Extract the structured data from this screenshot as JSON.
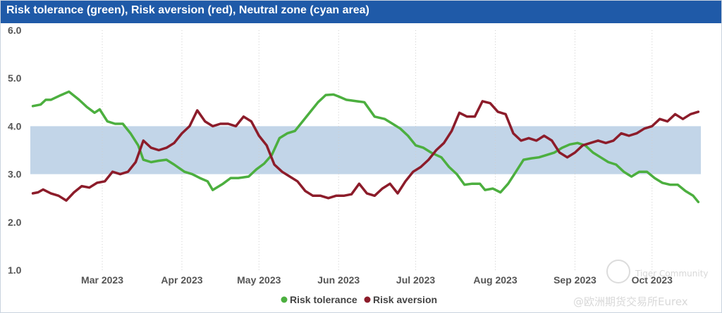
{
  "header": {
    "title": "Risk tolerance (green), Risk aversion (red), Neutral zone (cyan area)"
  },
  "watermark": {
    "community": "Tiger Community",
    "handle": "@欧洲期货交易所Eurex"
  },
  "colors": {
    "header": "#1f5aa8",
    "tolerance": "#4caf3f",
    "aversion": "#8c1c2a",
    "neutral": "#c2d5e8",
    "grid": "#cfcfcf"
  },
  "chart_data": {
    "type": "line",
    "title": "Risk tolerance (green), Risk aversion (red), Neutral zone (cyan area)",
    "x_type": "date",
    "x_range": [
      "2023-02-01",
      "2023-10-20"
    ],
    "ylim": [
      1.0,
      6.0
    ],
    "y_ticks": [
      "1.0",
      "2.0",
      "3.0",
      "4.0",
      "5.0",
      "6.0"
    ],
    "x_ticks": [
      {
        "label": "Mar 2023",
        "date": "2023-03-01"
      },
      {
        "label": "Apr 2023",
        "date": "2023-04-01"
      },
      {
        "label": "May 2023",
        "date": "2023-05-01"
      },
      {
        "label": "Jun 2023",
        "date": "2023-06-01"
      },
      {
        "label": "Jul 2023",
        "date": "2023-07-01"
      },
      {
        "label": "Aug 2023",
        "date": "2023-08-01"
      },
      {
        "label": "Sep 2023",
        "date": "2023-09-01"
      },
      {
        "label": "Oct 2023",
        "date": "2023-10-01"
      }
    ],
    "grid": "vertical dotted",
    "legend": "bottom-center",
    "bands": [
      {
        "name": "Neutral zone",
        "from": 3.0,
        "to": 4.0
      }
    ],
    "series": [
      {
        "name": "Risk tolerance",
        "data": [
          [
            "2023-02-02",
            4.42
          ],
          [
            "2023-02-05",
            4.45
          ],
          [
            "2023-02-07",
            4.55
          ],
          [
            "2023-02-09",
            4.55
          ],
          [
            "2023-02-13",
            4.65
          ],
          [
            "2023-02-16",
            4.72
          ],
          [
            "2023-02-20",
            4.55
          ],
          [
            "2023-02-23",
            4.4
          ],
          [
            "2023-02-26",
            4.28
          ],
          [
            "2023-02-28",
            4.35
          ],
          [
            "2023-03-03",
            4.1
          ],
          [
            "2023-03-06",
            4.05
          ],
          [
            "2023-03-09",
            4.05
          ],
          [
            "2023-03-12",
            3.85
          ],
          [
            "2023-03-15",
            3.6
          ],
          [
            "2023-03-17",
            3.3
          ],
          [
            "2023-03-20",
            3.25
          ],
          [
            "2023-03-23",
            3.28
          ],
          [
            "2023-03-26",
            3.3
          ],
          [
            "2023-03-29",
            3.2
          ],
          [
            "2023-04-02",
            3.05
          ],
          [
            "2023-04-05",
            3.0
          ],
          [
            "2023-04-08",
            2.92
          ],
          [
            "2023-04-11",
            2.85
          ],
          [
            "2023-04-13",
            2.67
          ],
          [
            "2023-04-17",
            2.8
          ],
          [
            "2023-04-20",
            2.92
          ],
          [
            "2023-04-23",
            2.92
          ],
          [
            "2023-04-27",
            2.95
          ],
          [
            "2023-04-30",
            3.1
          ],
          [
            "2023-05-03",
            3.22
          ],
          [
            "2023-05-06",
            3.4
          ],
          [
            "2023-05-09",
            3.75
          ],
          [
            "2023-05-12",
            3.85
          ],
          [
            "2023-05-15",
            3.9
          ],
          [
            "2023-05-18",
            4.1
          ],
          [
            "2023-05-21",
            4.3
          ],
          [
            "2023-05-24",
            4.5
          ],
          [
            "2023-05-27",
            4.65
          ],
          [
            "2023-05-30",
            4.66
          ],
          [
            "2023-06-01",
            4.62
          ],
          [
            "2023-06-04",
            4.55
          ],
          [
            "2023-06-08",
            4.52
          ],
          [
            "2023-06-11",
            4.5
          ],
          [
            "2023-06-15",
            4.2
          ],
          [
            "2023-06-19",
            4.15
          ],
          [
            "2023-06-22",
            4.05
          ],
          [
            "2023-06-25",
            3.95
          ],
          [
            "2023-06-28",
            3.8
          ],
          [
            "2023-07-01",
            3.6
          ],
          [
            "2023-07-04",
            3.55
          ],
          [
            "2023-07-07",
            3.45
          ],
          [
            "2023-07-11",
            3.35
          ],
          [
            "2023-07-14",
            3.15
          ],
          [
            "2023-07-17",
            3.0
          ],
          [
            "2023-07-20",
            2.78
          ],
          [
            "2023-07-23",
            2.8
          ],
          [
            "2023-07-26",
            2.8
          ],
          [
            "2023-07-28",
            2.67
          ],
          [
            "2023-07-31",
            2.7
          ],
          [
            "2023-08-03",
            2.62
          ],
          [
            "2023-08-06",
            2.8
          ],
          [
            "2023-08-09",
            3.05
          ],
          [
            "2023-08-12",
            3.3
          ],
          [
            "2023-08-15",
            3.33
          ],
          [
            "2023-08-18",
            3.35
          ],
          [
            "2023-08-21",
            3.4
          ],
          [
            "2023-08-24",
            3.45
          ],
          [
            "2023-08-27",
            3.55
          ],
          [
            "2023-08-30",
            3.62
          ],
          [
            "2023-09-02",
            3.65
          ],
          [
            "2023-09-05",
            3.6
          ],
          [
            "2023-09-08",
            3.45
          ],
          [
            "2023-09-11",
            3.35
          ],
          [
            "2023-09-14",
            3.25
          ],
          [
            "2023-09-17",
            3.2
          ],
          [
            "2023-09-20",
            3.05
          ],
          [
            "2023-09-23",
            2.95
          ],
          [
            "2023-09-26",
            3.05
          ],
          [
            "2023-09-29",
            3.05
          ],
          [
            "2023-10-02",
            2.92
          ],
          [
            "2023-10-05",
            2.82
          ],
          [
            "2023-10-08",
            2.78
          ],
          [
            "2023-10-11",
            2.78
          ],
          [
            "2023-10-14",
            2.65
          ],
          [
            "2023-10-17",
            2.55
          ],
          [
            "2023-10-19",
            2.42
          ]
        ]
      },
      {
        "name": "Risk aversion",
        "data": [
          [
            "2023-02-02",
            2.6
          ],
          [
            "2023-02-04",
            2.62
          ],
          [
            "2023-02-06",
            2.68
          ],
          [
            "2023-02-09",
            2.6
          ],
          [
            "2023-02-12",
            2.55
          ],
          [
            "2023-02-15",
            2.45
          ],
          [
            "2023-02-18",
            2.62
          ],
          [
            "2023-02-21",
            2.75
          ],
          [
            "2023-02-24",
            2.72
          ],
          [
            "2023-02-27",
            2.82
          ],
          [
            "2023-03-02",
            2.85
          ],
          [
            "2023-03-05",
            3.05
          ],
          [
            "2023-03-08",
            3.0
          ],
          [
            "2023-03-11",
            3.05
          ],
          [
            "2023-03-14",
            3.25
          ],
          [
            "2023-03-17",
            3.7
          ],
          [
            "2023-03-20",
            3.55
          ],
          [
            "2023-03-23",
            3.5
          ],
          [
            "2023-03-26",
            3.55
          ],
          [
            "2023-03-29",
            3.65
          ],
          [
            "2023-04-01",
            3.85
          ],
          [
            "2023-04-04",
            4.0
          ],
          [
            "2023-04-07",
            4.33
          ],
          [
            "2023-04-10",
            4.1
          ],
          [
            "2023-04-13",
            4.0
          ],
          [
            "2023-04-16",
            4.05
          ],
          [
            "2023-04-19",
            4.05
          ],
          [
            "2023-04-22",
            4.0
          ],
          [
            "2023-04-25",
            4.2
          ],
          [
            "2023-04-28",
            4.1
          ],
          [
            "2023-05-01",
            3.8
          ],
          [
            "2023-05-04",
            3.6
          ],
          [
            "2023-05-07",
            3.2
          ],
          [
            "2023-05-10",
            3.05
          ],
          [
            "2023-05-13",
            2.95
          ],
          [
            "2023-05-16",
            2.85
          ],
          [
            "2023-05-19",
            2.65
          ],
          [
            "2023-05-22",
            2.55
          ],
          [
            "2023-05-25",
            2.55
          ],
          [
            "2023-05-28",
            2.5
          ],
          [
            "2023-05-31",
            2.55
          ],
          [
            "2023-06-03",
            2.55
          ],
          [
            "2023-06-06",
            2.58
          ],
          [
            "2023-06-09",
            2.8
          ],
          [
            "2023-06-12",
            2.6
          ],
          [
            "2023-06-15",
            2.55
          ],
          [
            "2023-06-18",
            2.7
          ],
          [
            "2023-06-21",
            2.8
          ],
          [
            "2023-06-24",
            2.6
          ],
          [
            "2023-06-27",
            2.85
          ],
          [
            "2023-06-30",
            3.05
          ],
          [
            "2023-07-03",
            3.15
          ],
          [
            "2023-07-06",
            3.3
          ],
          [
            "2023-07-09",
            3.5
          ],
          [
            "2023-07-12",
            3.65
          ],
          [
            "2023-07-15",
            3.9
          ],
          [
            "2023-07-18",
            4.28
          ],
          [
            "2023-07-21",
            4.2
          ],
          [
            "2023-07-24",
            4.2
          ],
          [
            "2023-07-27",
            4.52
          ],
          [
            "2023-07-30",
            4.48
          ],
          [
            "2023-08-02",
            4.3
          ],
          [
            "2023-08-05",
            4.25
          ],
          [
            "2023-08-08",
            3.85
          ],
          [
            "2023-08-11",
            3.7
          ],
          [
            "2023-08-14",
            3.75
          ],
          [
            "2023-08-17",
            3.7
          ],
          [
            "2023-08-20",
            3.8
          ],
          [
            "2023-08-23",
            3.7
          ],
          [
            "2023-08-26",
            3.45
          ],
          [
            "2023-08-29",
            3.35
          ],
          [
            "2023-09-01",
            3.45
          ],
          [
            "2023-09-04",
            3.6
          ],
          [
            "2023-09-07",
            3.65
          ],
          [
            "2023-09-10",
            3.7
          ],
          [
            "2023-09-13",
            3.65
          ],
          [
            "2023-09-16",
            3.7
          ],
          [
            "2023-09-19",
            3.85
          ],
          [
            "2023-09-22",
            3.8
          ],
          [
            "2023-09-25",
            3.85
          ],
          [
            "2023-09-28",
            3.95
          ],
          [
            "2023-10-01",
            4.0
          ],
          [
            "2023-10-04",
            4.15
          ],
          [
            "2023-10-07",
            4.1
          ],
          [
            "2023-10-10",
            4.25
          ],
          [
            "2023-10-13",
            4.15
          ],
          [
            "2023-10-16",
            4.25
          ],
          [
            "2023-10-19",
            4.3
          ]
        ]
      }
    ]
  }
}
